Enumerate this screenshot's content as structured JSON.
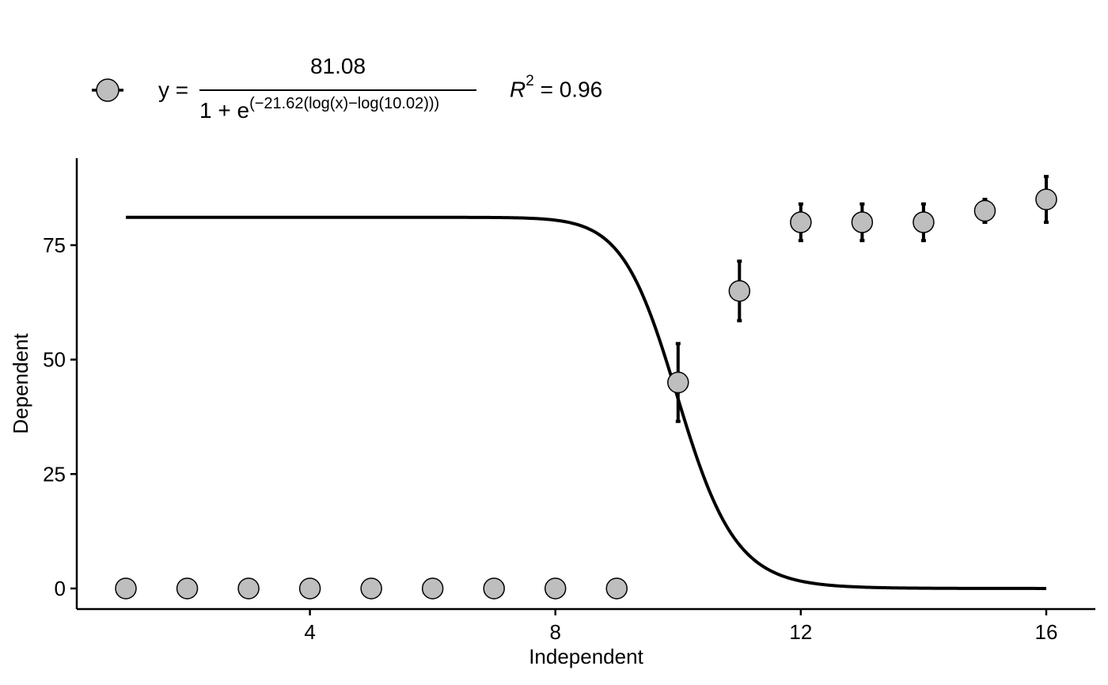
{
  "legend": {
    "equation_lhs": "y =",
    "equation_numerator": "81.08",
    "equation_den_base": "1 + e",
    "equation_den_exponent": "(−21.62(log(x)−log(10.02)))",
    "r2_symbol": "R",
    "r2_power": "2",
    "r2_value": "= 0.96"
  },
  "colors": {
    "point_fill": "#bebebe",
    "line": "#000000"
  },
  "chart_data": {
    "type": "scatter",
    "title": "",
    "xlabel": "Independent",
    "ylabel": "Dependent",
    "xlim": [
      0.2,
      16.8
    ],
    "ylim": [
      -4.5,
      94
    ],
    "x_ticks": [
      4,
      8,
      12,
      16
    ],
    "x_tick_labels": [
      "4",
      "8",
      "12",
      "16"
    ],
    "y_ticks": [
      0,
      25,
      50,
      75
    ],
    "y_tick_labels": [
      "0",
      "25",
      "50",
      "75"
    ],
    "grid": false,
    "legend_position": "top",
    "points": {
      "x": [
        1,
        2,
        3,
        4,
        5,
        6,
        7,
        8,
        9,
        10,
        11,
        12,
        13,
        14,
        15,
        16
      ],
      "y": [
        0,
        0,
        0,
        0,
        0,
        0,
        0,
        0,
        0,
        45,
        65,
        80,
        80,
        80,
        82.5,
        85
      ],
      "error_low": [
        0,
        0,
        0,
        0,
        0,
        0,
        0,
        0,
        0,
        36.5,
        58.5,
        76,
        76,
        76,
        80,
        80
      ],
      "error_high": [
        0,
        0,
        0,
        0,
        0,
        0,
        0,
        0,
        0,
        53.5,
        71.5,
        84,
        84,
        84,
        85,
        90
      ]
    },
    "fit": {
      "model": "log-logistic",
      "upper": 81.08,
      "slope": -21.62,
      "ec50": 10.02,
      "r_squared": 0.96,
      "x_range": [
        1,
        16
      ]
    }
  }
}
